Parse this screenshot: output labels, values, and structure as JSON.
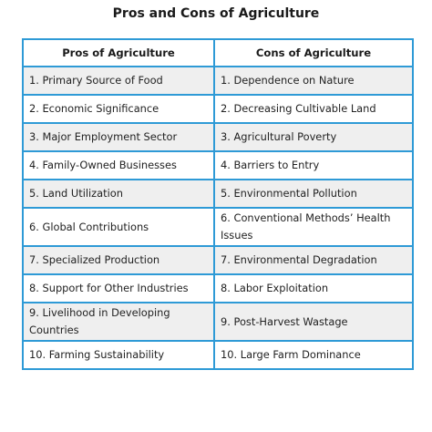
{
  "title": "Pros and Cons of Agriculture",
  "table": {
    "headers": [
      "Pros of Agriculture",
      "Cons of Agriculture"
    ],
    "rows": [
      {
        "pro": "1. Primary Source of Food",
        "con": "1. Dependence on Nature"
      },
      {
        "pro": "2. Economic Significance",
        "con": "2. Decreasing Cultivable Land"
      },
      {
        "pro": "3. Major Employment Sector",
        "con": "3. Agricultural Poverty"
      },
      {
        "pro": "4. Family-Owned Businesses",
        "con": "4. Barriers to Entry"
      },
      {
        "pro": "5. Land Utilization",
        "con": "5. Environmental Pollution"
      },
      {
        "pro": "6. Global Contributions",
        "con": "6. Conventional Methods’ Health Issues"
      },
      {
        "pro": "7. Specialized Production",
        "con": "7. Environmental Degradation"
      },
      {
        "pro": "8. Support for Other Industries",
        "con": "8. Labor Exploitation"
      },
      {
        "pro": "9. Livelihood in Developing Countries",
        "con": "9. Post-Harvest Wastage"
      },
      {
        "pro": "10. Farming Sustainability",
        "con": "10. Large Farm Dominance"
      }
    ]
  },
  "colors": {
    "border": "#2e9ad6",
    "stripe": "#efefef"
  }
}
